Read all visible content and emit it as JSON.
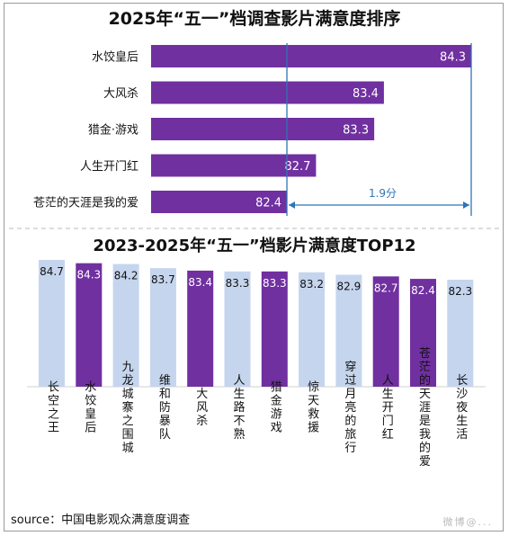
{
  "chart_data": [
    {
      "type": "bar",
      "orientation": "horizontal",
      "title": "2025年“五一”档调查影片满意度排序",
      "categories": [
        "水饺皇后",
        "大风杀",
        "猎金·游戏",
        "人生开门红",
        "苍茫的天涯是我的爱"
      ],
      "values": [
        84.3,
        83.4,
        83.3,
        82.7,
        82.4
      ],
      "value_labels": [
        "84.3",
        "83.4",
        "83.3",
        "82.7",
        "82.4"
      ],
      "annotation": "1.9分",
      "bar_color": "#7030a0",
      "annotation_color": "#2e75b6"
    },
    {
      "type": "bar",
      "orientation": "vertical",
      "title": "2023-2025年“五一”档影片满意度TOP12",
      "categories": [
        "长空之王",
        "水饺皇后",
        "九龙城寨之围城",
        "维和防暴队",
        "大风杀",
        "人生路不熟",
        "猎金游戏",
        "惊天救援",
        "穿过月亮的旅行",
        "人生开门红",
        "苍茫的天涯是我的爱",
        "长沙夜生活"
      ],
      "values": [
        84.7,
        84.3,
        84.2,
        83.7,
        83.4,
        83.3,
        83.3,
        83.2,
        82.9,
        82.7,
        82.4,
        82.3
      ],
      "value_labels": [
        "84.7",
        "84.3",
        "84.2",
        "83.7",
        "83.4",
        "83.3",
        "83.3",
        "83.2",
        "82.9",
        "82.7",
        "82.4",
        "82.3"
      ],
      "highlight": [
        false,
        true,
        false,
        false,
        true,
        false,
        true,
        false,
        false,
        true,
        true,
        false
      ],
      "highlight_color": "#7030a0",
      "base_color": "#c5d5ee"
    }
  ],
  "source": "source：中国电影观众满意度调查",
  "watermark": "微博@..."
}
